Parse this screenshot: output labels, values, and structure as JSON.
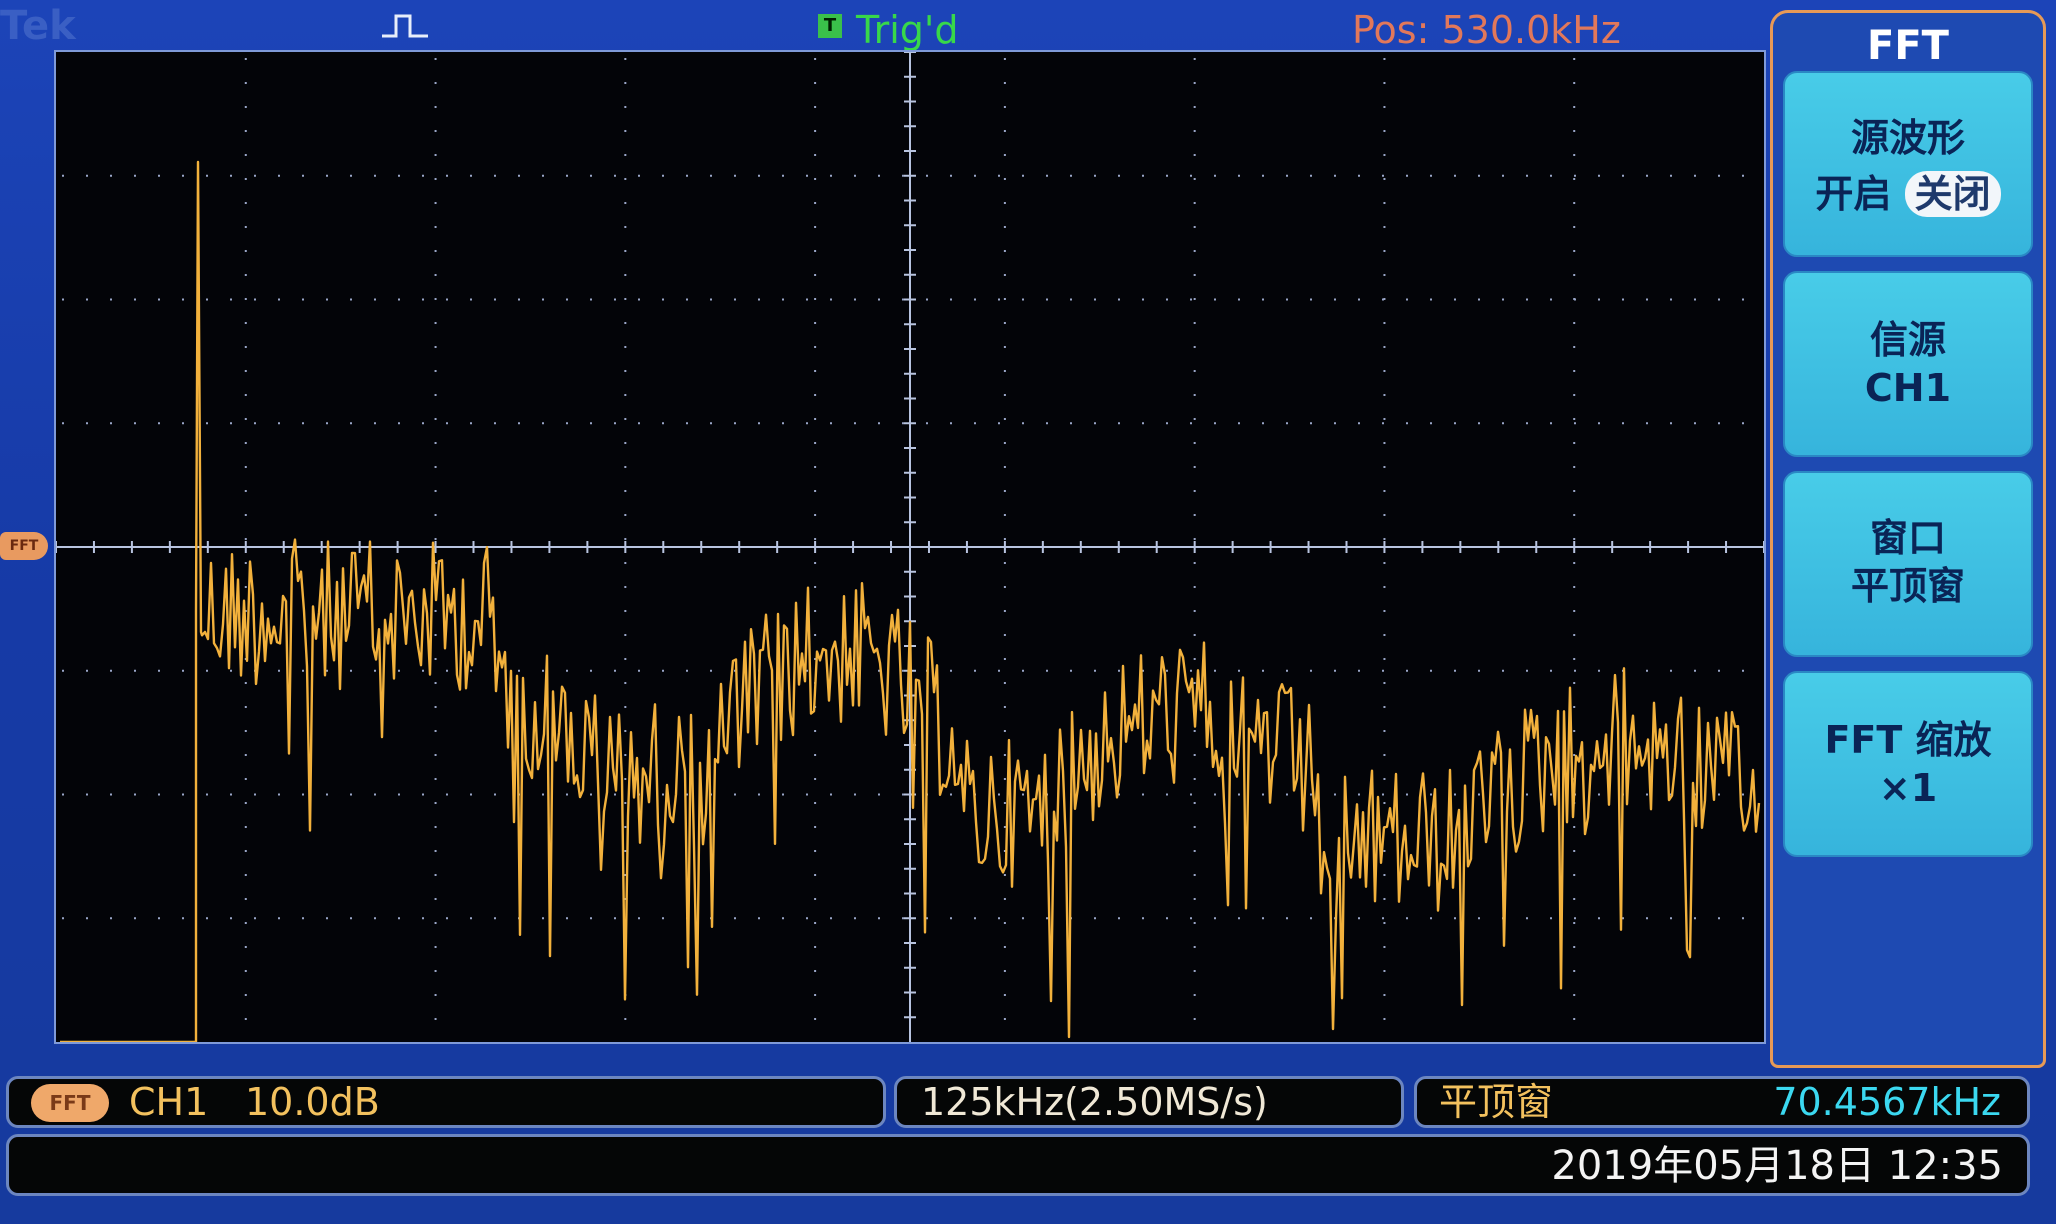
{
  "topbar": {
    "brand": "Tek",
    "trigger_icon": "pulse-trigger-icon",
    "trigger_t": "T",
    "trigger_state": "Trig'd",
    "position": "Pos: 530.0kHz"
  },
  "marker": {
    "label": "FFT"
  },
  "menu": {
    "title": "FFT",
    "buttons": [
      {
        "line1": "源波形",
        "on_label": "开启",
        "off_label": "关闭"
      },
      {
        "line1": "信源",
        "line2": "CH1"
      },
      {
        "line1": "窗口",
        "line2": "平顶窗"
      },
      {
        "line1": "FFT 缩放",
        "line2": "×1"
      }
    ]
  },
  "status": {
    "badge": "FFT",
    "channel": "CH1",
    "scale": "10.0dB",
    "span": "125kHz(2.50MS/s)",
    "window": "平顶窗",
    "cursor_freq": "70.4567kHz"
  },
  "datetime": "2019年05月18日 12:35",
  "colors": {
    "trace": "#f2b13c",
    "grid": "#9aa6c8",
    "background": "#163aa6",
    "trigger": "#38d84a",
    "position": "#e2785a",
    "frequency": "#3bd8f0"
  }
}
